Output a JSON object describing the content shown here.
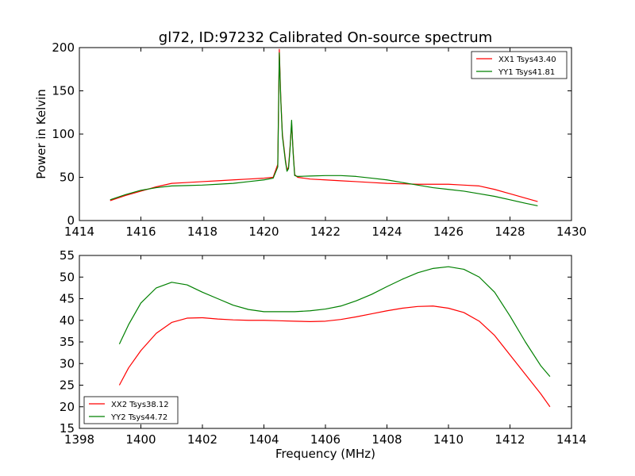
{
  "chart_data": [
    {
      "type": "line",
      "title": "gl72, ID:97232 Calibrated On-source spectrum",
      "xlabel": "",
      "ylabel": "Power in Kelvin",
      "xlim": [
        1414,
        1430
      ],
      "ylim": [
        0,
        200
      ],
      "xticks": [
        "1414",
        "1416",
        "1418",
        "1420",
        "1422",
        "1424",
        "1426",
        "1428",
        "1430"
      ],
      "yticks": [
        "0",
        "50",
        "100",
        "150",
        "200"
      ],
      "legend_position": "top-right",
      "grid": false,
      "series": [
        {
          "name": "XX1 Tsys43.40",
          "color": "#ff0000",
          "x": [
            1415.0,
            1415.5,
            1416.0,
            1416.5,
            1417.0,
            1417.5,
            1418.0,
            1418.5,
            1419.0,
            1419.5,
            1420.0,
            1420.3,
            1420.45,
            1420.5,
            1420.55,
            1420.6,
            1420.7,
            1420.75,
            1420.8,
            1420.85,
            1420.9,
            1420.95,
            1421.0,
            1421.1,
            1421.5,
            1422.0,
            1422.5,
            1423.0,
            1423.5,
            1424.0,
            1424.5,
            1425.0,
            1425.5,
            1426.0,
            1426.5,
            1427.0,
            1427.5,
            1428.0,
            1428.5,
            1428.9
          ],
          "y": [
            23,
            29,
            34,
            39,
            43,
            44,
            45,
            46,
            47,
            48,
            49,
            50,
            65,
            198,
            140,
            100,
            70,
            58,
            62,
            85,
            112,
            80,
            53,
            50,
            48,
            47,
            46,
            45,
            44,
            43,
            42.5,
            42,
            42,
            42,
            41,
            40,
            36,
            31,
            26,
            22
          ]
        },
        {
          "name": "YY1 Tsys41.81",
          "color": "#008000",
          "x": [
            1415.0,
            1415.5,
            1416.0,
            1416.5,
            1417.0,
            1417.5,
            1418.0,
            1418.5,
            1419.0,
            1419.5,
            1420.0,
            1420.3,
            1420.45,
            1420.5,
            1420.55,
            1420.6,
            1420.7,
            1420.75,
            1420.8,
            1420.85,
            1420.9,
            1420.95,
            1421.0,
            1421.1,
            1421.5,
            1422.0,
            1422.5,
            1423.0,
            1423.5,
            1424.0,
            1424.5,
            1425.0,
            1425.5,
            1426.0,
            1426.5,
            1427.0,
            1427.5,
            1428.0,
            1428.5,
            1428.9
          ],
          "y": [
            24,
            30,
            35,
            38,
            40,
            40.5,
            41,
            42,
            43,
            45,
            47,
            49,
            62,
            194,
            138,
            98,
            68,
            57,
            60,
            83,
            116,
            78,
            52,
            51,
            51.5,
            52,
            52,
            51,
            49,
            47,
            44,
            41,
            38,
            36,
            34,
            31,
            28,
            24,
            20,
            17
          ]
        }
      ]
    },
    {
      "type": "line",
      "title": "",
      "xlabel": "Frequency (MHz)",
      "ylabel": "",
      "xlim": [
        1398,
        1414
      ],
      "ylim": [
        15,
        55
      ],
      "xticks": [
        "1398",
        "1400",
        "1402",
        "1404",
        "1406",
        "1408",
        "1410",
        "1412",
        "1414"
      ],
      "yticks": [
        "15",
        "20",
        "25",
        "30",
        "35",
        "40",
        "45",
        "50",
        "55"
      ],
      "legend_position": "bottom-left",
      "grid": false,
      "series": [
        {
          "name": "XX2 Tsys38.12",
          "color": "#ff0000",
          "x": [
            1399.3,
            1399.6,
            1400.0,
            1400.5,
            1401.0,
            1401.5,
            1402.0,
            1402.5,
            1403.0,
            1403.5,
            1404.0,
            1404.5,
            1405.0,
            1405.5,
            1406.0,
            1406.5,
            1407.0,
            1407.5,
            1408.0,
            1408.5,
            1409.0,
            1409.5,
            1410.0,
            1410.5,
            1411.0,
            1411.5,
            1412.0,
            1412.5,
            1413.0,
            1413.3
          ],
          "y": [
            25,
            29,
            33,
            37,
            39.5,
            40.5,
            40.6,
            40.3,
            40.1,
            40.0,
            40.0,
            39.9,
            39.8,
            39.7,
            39.8,
            40.2,
            40.8,
            41.5,
            42.2,
            42.8,
            43.2,
            43.3,
            42.8,
            41.8,
            39.8,
            36.5,
            32,
            27.5,
            23,
            20
          ]
        },
        {
          "name": "YY2 Tsys44.72",
          "color": "#008000",
          "x": [
            1399.3,
            1399.6,
            1400.0,
            1400.5,
            1401.0,
            1401.5,
            1402.0,
            1402.5,
            1403.0,
            1403.5,
            1404.0,
            1404.5,
            1405.0,
            1405.5,
            1406.0,
            1406.5,
            1407.0,
            1407.5,
            1408.0,
            1408.5,
            1409.0,
            1409.5,
            1410.0,
            1410.5,
            1411.0,
            1411.5,
            1412.0,
            1412.5,
            1413.0,
            1413.3
          ],
          "y": [
            34.5,
            39,
            44,
            47.5,
            48.8,
            48.2,
            46.5,
            45,
            43.5,
            42.5,
            42.0,
            42.0,
            42.0,
            42.2,
            42.6,
            43.3,
            44.5,
            46,
            47.8,
            49.5,
            51,
            52,
            52.4,
            51.8,
            50,
            46.5,
            41,
            35,
            29.5,
            27
          ]
        }
      ]
    }
  ]
}
